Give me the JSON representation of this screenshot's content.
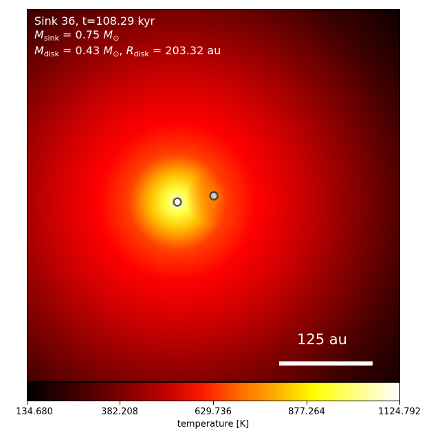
{
  "annotations": {
    "title": "Sink 36, t=108.29 kyr",
    "sink_mass": {
      "symbol": "M",
      "sub": "sink",
      "equals": " = 0.75 ",
      "unit": "M",
      "unit_sub": "⊙"
    },
    "disk": {
      "mass_symbol": "M",
      "mass_sub": "disk",
      "mass_equals": " = 0.43 ",
      "mass_unit": "M",
      "mass_unit_sub": "⊙",
      "sep": ", ",
      "r_symbol": "R",
      "r_sub": "disk",
      "r_equals": " = 203.32 au"
    }
  },
  "scale_bar": {
    "label": "125 au"
  },
  "colorbar": {
    "label": "temperature [K]",
    "ticks": [
      "134.680",
      "382.208",
      "629.736",
      "877.264",
      "1124.792"
    ],
    "colormap": "hot"
  },
  "sinks": [
    {
      "name": "sink-primary",
      "color": "#555555"
    },
    {
      "name": "sink-companion",
      "color": "#d8c8a8"
    }
  ]
}
